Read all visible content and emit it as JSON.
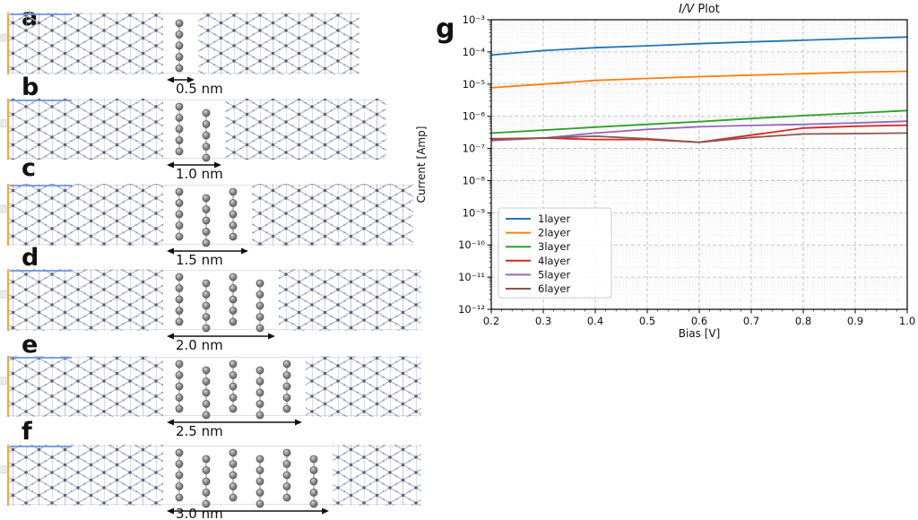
{
  "figure_background": "#ffffff",
  "panels": [
    {
      "label": "a",
      "chains": 1,
      "gap_label": "0.5 nm"
    },
    {
      "label": "b",
      "chains": 2,
      "gap_label": "1.0 nm"
    },
    {
      "label": "c",
      "chains": 3,
      "gap_label": "1.5 nm"
    },
    {
      "label": "d",
      "chains": 4,
      "gap_label": "2.0 nm"
    },
    {
      "label": "e",
      "chains": 5,
      "gap_label": "2.5 nm"
    },
    {
      "label": "f",
      "chains": 6,
      "gap_label": "3.0 nm"
    }
  ],
  "structure_colors": {
    "lattice_bond": "#b6bad0",
    "lattice_node": "#5e6070",
    "lattice_subnode": "#9094aa",
    "chain_sphere": "#8a8a8a",
    "chain_sphere_edge": "#54545a",
    "cell_edge_orange": "#f5a733",
    "cell_edge_blue": "#6f95dd",
    "gap_line": "#dfe0e8",
    "arrow": "#111111"
  },
  "chart_panel_label": "g",
  "chart_data": {
    "type": "line",
    "title": "I/V Plot",
    "title_italic": "I/V",
    "title_rest": " Plot",
    "xlabel": "Bias [V]",
    "ylabel": "Current [Amp]",
    "xlim": [
      0.2,
      1.0
    ],
    "ylim": [
      1e-12,
      0.001
    ],
    "yscale": "log",
    "grid": true,
    "legend_position": "lower left",
    "x": [
      0.2,
      0.3,
      0.4,
      0.5,
      0.6,
      0.7,
      0.8,
      0.9,
      1.0
    ],
    "x_ticks": [
      "0.2",
      "0.3",
      "0.4",
      "0.5",
      "0.6",
      "0.7",
      "0.8",
      "0.9",
      "1.0"
    ],
    "y_ticks": [
      "10⁻³",
      "10⁻⁴",
      "10⁻⁵",
      "10⁻⁶",
      "10⁻⁷",
      "10⁻⁸",
      "10⁻⁹",
      "10⁻¹⁰",
      "10⁻¹¹",
      "10⁻¹²"
    ],
    "series": [
      {
        "name": "1layer",
        "color": "#1f77b4",
        "values": [
          8e-05,
          0.00011,
          0.000135,
          0.000155,
          0.00018,
          0.000205,
          0.00023,
          0.00026,
          0.00029
        ]
      },
      {
        "name": "2layer",
        "color": "#ff7f0e",
        "values": [
          7.7e-06,
          1e-05,
          1.3e-05,
          1.5e-05,
          1.7e-05,
          1.9e-05,
          2.1e-05,
          2.35e-05,
          2.5e-05
        ]
      },
      {
        "name": "3layer",
        "color": "#2ca02c",
        "values": [
          3e-07,
          3.7e-07,
          4.6e-07,
          5.6e-07,
          6.8e-07,
          8.5e-07,
          1.05e-06,
          1.25e-06,
          1.5e-06
        ]
      },
      {
        "name": "4layer",
        "color": "#d62728",
        "values": [
          2e-07,
          2.1e-07,
          1.9e-07,
          1.9e-07,
          1.55e-07,
          2.6e-07,
          4.3e-07,
          4.9e-07,
          5.3e-07
        ]
      },
      {
        "name": "5layer",
        "color": "#9467bd",
        "values": [
          1.75e-07,
          2.1e-07,
          3e-07,
          3.9e-07,
          4.7e-07,
          5.2e-07,
          5.6e-07,
          6.2e-07,
          7e-07
        ]
      },
      {
        "name": "6layer",
        "color": "#8c564b",
        "values": [
          1.9e-07,
          2.1e-07,
          2.4e-07,
          2e-07,
          1.55e-07,
          2.2e-07,
          2.8e-07,
          2.9e-07,
          3e-07
        ]
      }
    ]
  }
}
